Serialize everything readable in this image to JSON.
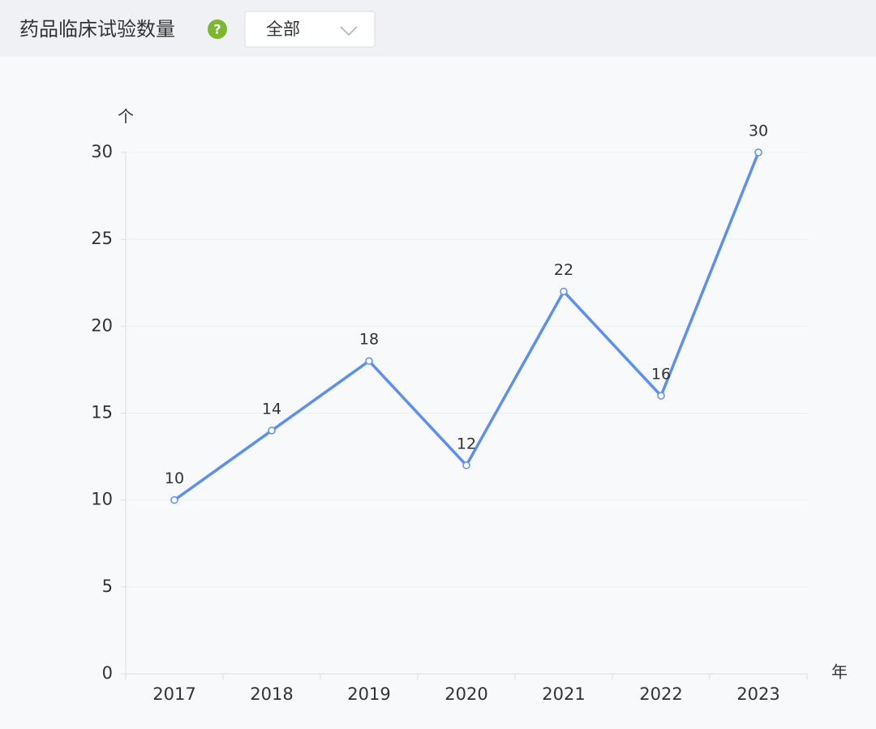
{
  "header": {
    "title": "药品临床试验数量",
    "help_icon": "?",
    "filter": "全部"
  },
  "chart_data": {
    "type": "line",
    "y_unit": "个",
    "x_unit": "年",
    "categories": [
      "2017",
      "2018",
      "2019",
      "2020",
      "2021",
      "2022",
      "2023"
    ],
    "series": [
      {
        "name": "药品临床试验数量",
        "color": "#5b8ff0",
        "values": [
          10,
          14,
          18,
          12,
          22,
          16,
          30
        ]
      }
    ],
    "ylim": [
      0,
      30
    ],
    "yticks": [
      0,
      5,
      10,
      15,
      20,
      25,
      30
    ],
    "grid": true,
    "data_labels": true
  }
}
